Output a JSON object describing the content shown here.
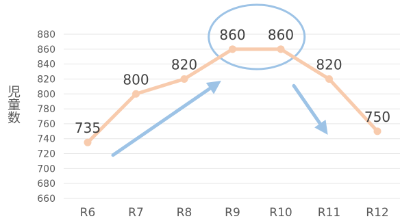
{
  "chart_data": {
    "type": "line",
    "categories": [
      "R6",
      "R7",
      "R8",
      "R9",
      "R10",
      "R11",
      "R12"
    ],
    "values": [
      735,
      800,
      820,
      860,
      860,
      820,
      750
    ],
    "ylabel": "児童数",
    "ylim": [
      660,
      880
    ],
    "yticks": [
      660,
      680,
      700,
      720,
      740,
      760,
      780,
      800,
      820,
      840,
      860,
      880
    ],
    "grid": true,
    "legend": "none",
    "colors": {
      "line": "#f8cbad",
      "arrow": "#9dc3e6",
      "highlight": "#9dc3e6"
    },
    "annotations": [
      {
        "type": "arrow",
        "direction": "up",
        "from_category": "R6",
        "to_category": "R9"
      },
      {
        "type": "arrow",
        "direction": "down",
        "from_category": "R10",
        "to_category": "R11"
      },
      {
        "type": "ellipse",
        "categories": [
          "R9",
          "R10"
        ]
      }
    ]
  }
}
